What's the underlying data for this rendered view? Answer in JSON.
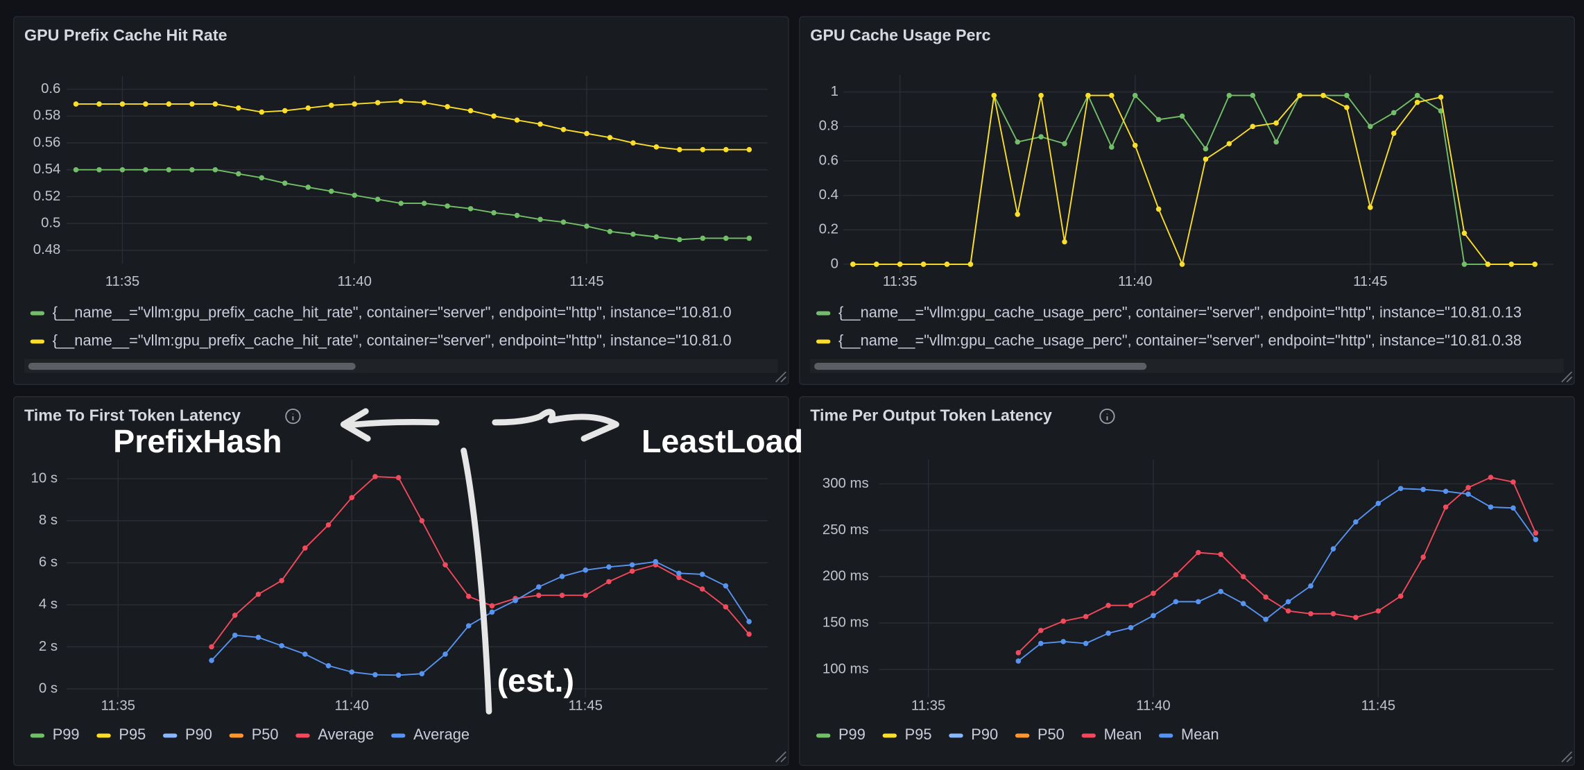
{
  "chart_data": [
    {
      "type": "line",
      "title": "GPU Prefix Cache Hit Rate",
      "x": [
        694,
        694.5,
        695,
        695.5,
        696,
        696.5,
        697,
        697.5,
        698,
        698.5,
        699,
        699.5,
        700,
        700.5,
        701,
        701.5,
        702,
        702.5,
        703,
        703.5,
        704,
        704.5,
        705,
        705.5,
        706,
        706.5,
        707,
        707.5,
        708,
        708.5
      ],
      "xlim": [
        693.8,
        708.9
      ],
      "xticks": [
        {
          "value": 695,
          "label": "11:35"
        },
        {
          "value": 700,
          "label": "11:40"
        },
        {
          "value": 705,
          "label": "11:45"
        }
      ],
      "ylim": [
        0.47,
        0.61
      ],
      "yticks": [
        0.48,
        0.5,
        0.52,
        0.54,
        0.56,
        0.58,
        0.6
      ],
      "grid": true,
      "series": [
        {
          "name": "{__name__=\"vllm:gpu_prefix_cache_hit_rate\", container=\"server\", endpoint=\"http\", instance=\"10.81.0",
          "color": "#73bf69",
          "values": [
            0.54,
            0.54,
            0.54,
            0.54,
            0.54,
            0.54,
            0.54,
            0.537,
            0.534,
            0.53,
            0.527,
            0.524,
            0.521,
            0.518,
            0.515,
            0.515,
            0.513,
            0.511,
            0.508,
            0.506,
            0.503,
            0.501,
            0.498,
            0.494,
            0.492,
            0.49,
            0.488,
            0.489,
            0.489,
            0.489
          ]
        },
        {
          "name": "{__name__=\"vllm:gpu_prefix_cache_hit_rate\", container=\"server\", endpoint=\"http\", instance=\"10.81.0",
          "color": "#fade2a",
          "values": [
            0.589,
            0.589,
            0.589,
            0.589,
            0.589,
            0.589,
            0.589,
            0.586,
            0.583,
            0.584,
            0.586,
            0.588,
            0.589,
            0.59,
            0.591,
            0.59,
            0.587,
            0.584,
            0.58,
            0.577,
            0.574,
            0.57,
            0.567,
            0.564,
            0.56,
            0.557,
            0.555,
            0.555,
            0.555,
            0.555
          ]
        }
      ]
    },
    {
      "type": "line",
      "title": "GPU Cache Usage Perc",
      "x": [
        694,
        694.5,
        695,
        695.5,
        696,
        696.5,
        697,
        697.5,
        698,
        698.5,
        699,
        699.5,
        700,
        700.5,
        701,
        701.5,
        702,
        702.5,
        703,
        703.5,
        704,
        704.5,
        705,
        705.5,
        706,
        706.5,
        707,
        707.5,
        708,
        708.5
      ],
      "xlim": [
        693.8,
        708.9
      ],
      "xticks": [
        {
          "value": 695,
          "label": "11:35"
        },
        {
          "value": 700,
          "label": "11:40"
        },
        {
          "value": 705,
          "label": "11:45"
        }
      ],
      "ylim": [
        -0.05,
        1.1
      ],
      "yticks": [
        0,
        0.2,
        0.4,
        0.6,
        0.8,
        1
      ],
      "grid": true,
      "series": [
        {
          "name": "{__name__=\"vllm:gpu_cache_usage_perc\", container=\"server\", endpoint=\"http\", instance=\"10.81.0.13",
          "color": "#73bf69",
          "values": [
            0,
            0,
            0,
            0,
            0,
            0,
            0.98,
            0.71,
            0.74,
            0.7,
            0.98,
            0.68,
            0.98,
            0.84,
            0.86,
            0.67,
            0.98,
            0.98,
            0.71,
            0.98,
            0.98,
            0.98,
            0.8,
            0.88,
            0.98,
            0.89,
            0,
            0,
            0,
            0
          ]
        },
        {
          "name": "{__name__=\"vllm:gpu_cache_usage_perc\", container=\"server\", endpoint=\"http\", instance=\"10.81.0.38",
          "color": "#fade2a",
          "values": [
            0,
            0,
            0,
            0,
            0,
            0,
            0.98,
            0.29,
            0.98,
            0.13,
            0.98,
            0.98,
            0.69,
            0.32,
            0,
            0.61,
            0.7,
            0.8,
            0.82,
            0.98,
            0.98,
            0.91,
            0.33,
            0.76,
            0.94,
            0.97,
            0.18,
            0,
            0,
            0
          ]
        }
      ]
    },
    {
      "type": "line",
      "title": "Time To First Token Latency",
      "x": [
        697,
        697.5,
        698,
        698.5,
        699,
        699.5,
        700,
        700.5,
        701,
        701.5,
        702,
        702.5,
        703,
        703.5,
        704,
        704.5,
        705,
        705.5,
        706,
        706.5,
        707,
        707.5,
        708,
        708.5
      ],
      "xlim": [
        693.9,
        708.9
      ],
      "xticks": [
        {
          "value": 695,
          "label": "11:35"
        },
        {
          "value": 700,
          "label": "11:40"
        },
        {
          "value": 705,
          "label": "11:45"
        }
      ],
      "ylim": [
        -0.4,
        10.9
      ],
      "yticks": [
        {
          "value": 0,
          "label": "0 s"
        },
        {
          "value": 2,
          "label": "2 s"
        },
        {
          "value": 4,
          "label": "4 s"
        },
        {
          "value": 6,
          "label": "6 s"
        },
        {
          "value": 8,
          "label": "8 s"
        },
        {
          "value": 10,
          "label": "10 s"
        }
      ],
      "grid": true,
      "series": [
        {
          "name": "P99",
          "color": "#73bf69",
          "hidden": true,
          "values": [
            null,
            null,
            null,
            null,
            null,
            null,
            null,
            null,
            null,
            null,
            null,
            null,
            null,
            null,
            null,
            null,
            null,
            null,
            null,
            null,
            null,
            null,
            null,
            null
          ]
        },
        {
          "name": "P95",
          "color": "#fade2a",
          "hidden": true,
          "values": [
            null,
            null,
            null,
            null,
            null,
            null,
            null,
            null,
            null,
            null,
            null,
            null,
            null,
            null,
            null,
            null,
            null,
            null,
            null,
            null,
            null,
            null,
            null,
            null
          ]
        },
        {
          "name": "P90",
          "color": "#8ab8ff",
          "hidden": true,
          "values": [
            null,
            null,
            null,
            null,
            null,
            null,
            null,
            null,
            null,
            null,
            null,
            null,
            null,
            null,
            null,
            null,
            null,
            null,
            null,
            null,
            null,
            null,
            null,
            null
          ]
        },
        {
          "name": "P50",
          "color": "#ff9830",
          "hidden": true,
          "values": [
            null,
            null,
            null,
            null,
            null,
            null,
            null,
            null,
            null,
            null,
            null,
            null,
            null,
            null,
            null,
            null,
            null,
            null,
            null,
            null,
            null,
            null,
            null,
            null
          ]
        },
        {
          "name": "Average",
          "color": "#f2495c",
          "values": [
            2.0,
            3.5,
            4.5,
            5.15,
            6.7,
            7.8,
            9.1,
            10.1,
            10.05,
            8.0,
            5.9,
            4.4,
            3.95,
            4.3,
            4.45,
            4.45,
            4.45,
            5.1,
            5.6,
            5.9,
            5.3,
            4.75,
            3.9,
            2.6
          ]
        },
        {
          "name": "Average",
          "color": "#5794f2",
          "values": [
            1.35,
            2.55,
            2.45,
            2.05,
            1.65,
            1.1,
            0.8,
            0.67,
            0.65,
            0.72,
            1.65,
            3.0,
            3.65,
            4.2,
            4.85,
            5.35,
            5.65,
            5.8,
            5.9,
            6.05,
            5.5,
            5.45,
            4.9,
            3.2
          ]
        }
      ]
    },
    {
      "type": "line",
      "title": "Time Per Output Token Latency",
      "x": [
        697,
        697.5,
        698,
        698.5,
        699,
        699.5,
        700,
        700.5,
        701,
        701.5,
        702,
        702.5,
        703,
        703.5,
        704,
        704.5,
        705,
        705.5,
        706,
        706.5,
        707,
        707.5,
        708,
        708.5
      ],
      "xlim": [
        693.9,
        708.9
      ],
      "xticks": [
        {
          "value": 695,
          "label": "11:35"
        },
        {
          "value": 700,
          "label": "11:40"
        },
        {
          "value": 705,
          "label": "11:45"
        }
      ],
      "ylim": [
        70,
        326
      ],
      "yticks": [
        {
          "value": 100,
          "label": "100 ms"
        },
        {
          "value": 150,
          "label": "150 ms"
        },
        {
          "value": 200,
          "label": "200 ms"
        },
        {
          "value": 250,
          "label": "250 ms"
        },
        {
          "value": 300,
          "label": "300 ms"
        }
      ],
      "grid": true,
      "series": [
        {
          "name": "P99",
          "color": "#73bf69",
          "hidden": true,
          "values": [
            null,
            null,
            null,
            null,
            null,
            null,
            null,
            null,
            null,
            null,
            null,
            null,
            null,
            null,
            null,
            null,
            null,
            null,
            null,
            null,
            null,
            null,
            null,
            null
          ]
        },
        {
          "name": "P95",
          "color": "#fade2a",
          "hidden": true,
          "values": [
            null,
            null,
            null,
            null,
            null,
            null,
            null,
            null,
            null,
            null,
            null,
            null,
            null,
            null,
            null,
            null,
            null,
            null,
            null,
            null,
            null,
            null,
            null,
            null
          ]
        },
        {
          "name": "P90",
          "color": "#8ab8ff",
          "hidden": true,
          "values": [
            null,
            null,
            null,
            null,
            null,
            null,
            null,
            null,
            null,
            null,
            null,
            null,
            null,
            null,
            null,
            null,
            null,
            null,
            null,
            null,
            null,
            null,
            null,
            null
          ]
        },
        {
          "name": "P50",
          "color": "#ff9830",
          "hidden": true,
          "values": [
            null,
            null,
            null,
            null,
            null,
            null,
            null,
            null,
            null,
            null,
            null,
            null,
            null,
            null,
            null,
            null,
            null,
            null,
            null,
            null,
            null,
            null,
            null,
            null
          ]
        },
        {
          "name": "Mean",
          "color": "#f2495c",
          "values": [
            118,
            142,
            152,
            157,
            169,
            169,
            182,
            202,
            226,
            224,
            200,
            178,
            163,
            160,
            160,
            156,
            163,
            179,
            221,
            275,
            296,
            307,
            302,
            247
          ]
        },
        {
          "name": "Mean",
          "color": "#5794f2",
          "values": [
            109,
            128,
            130,
            128,
            139,
            145,
            158,
            173,
            173,
            184,
            171,
            154,
            173,
            190,
            230,
            259,
            279,
            295,
            294,
            292,
            289,
            275,
            274,
            240
          ]
        }
      ]
    }
  ],
  "annotations": [
    "PrefixHash",
    "LeastLoad",
    "(est.)"
  ]
}
